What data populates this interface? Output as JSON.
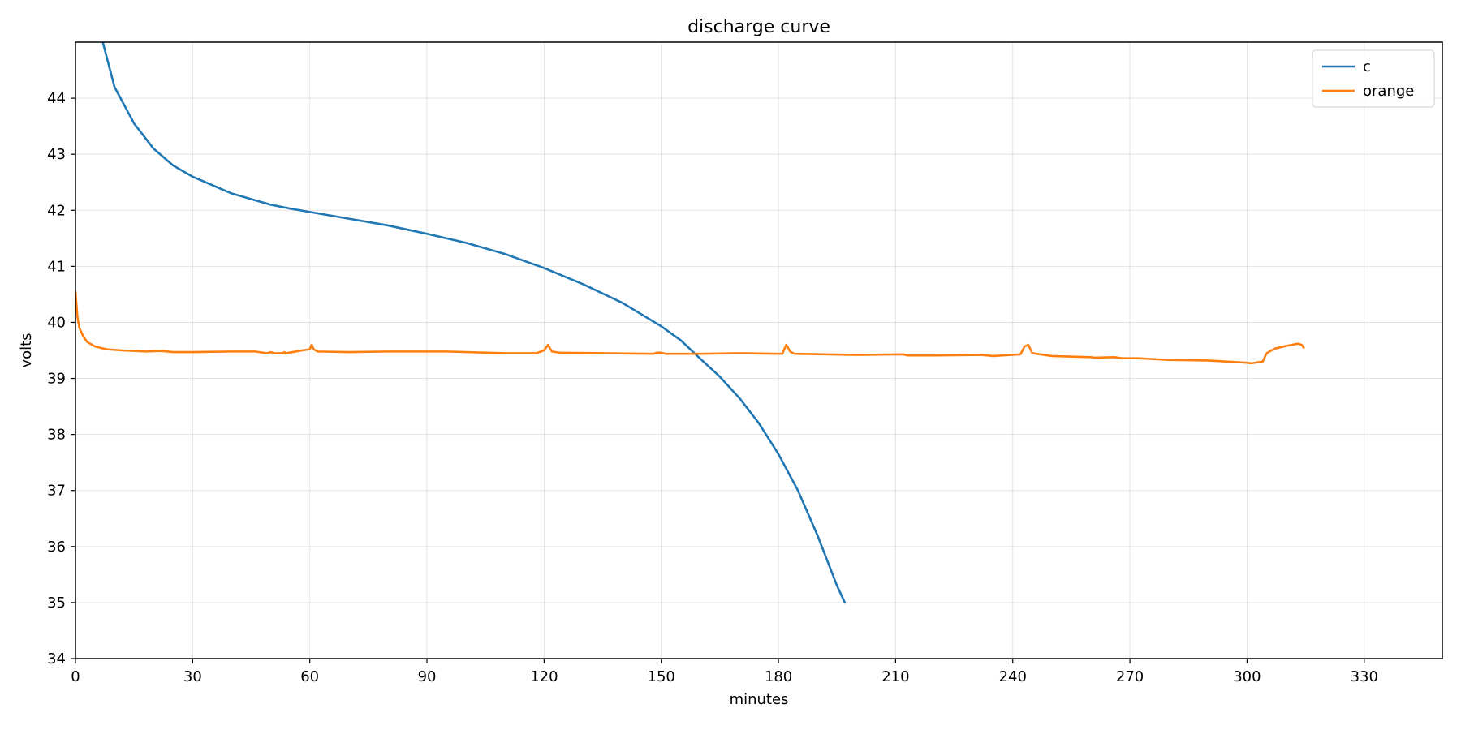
{
  "chart_data": {
    "type": "line",
    "title": "discharge curve",
    "xlabel": "minutes",
    "ylabel": "volts",
    "xlim": [
      0,
      350
    ],
    "ylim": [
      34,
      45
    ],
    "xticks": [
      0,
      30,
      60,
      90,
      120,
      150,
      180,
      210,
      240,
      270,
      300,
      330
    ],
    "yticks": [
      34,
      35,
      36,
      37,
      38,
      39,
      40,
      41,
      42,
      43,
      44
    ],
    "grid": true,
    "legend_position": "top-right",
    "series": [
      {
        "name": "c",
        "color": "#1f77b4",
        "points": [
          [
            7,
            45.0
          ],
          [
            10,
            44.2
          ],
          [
            15,
            43.55
          ],
          [
            20,
            43.1
          ],
          [
            25,
            42.8
          ],
          [
            30,
            42.6
          ],
          [
            35,
            42.45
          ],
          [
            40,
            42.3
          ],
          [
            45,
            42.2
          ],
          [
            50,
            42.1
          ],
          [
            55,
            42.03
          ],
          [
            60,
            41.97
          ],
          [
            70,
            41.85
          ],
          [
            80,
            41.73
          ],
          [
            90,
            41.58
          ],
          [
            100,
            41.42
          ],
          [
            110,
            41.22
          ],
          [
            120,
            40.97
          ],
          [
            130,
            40.68
          ],
          [
            140,
            40.35
          ],
          [
            150,
            39.93
          ],
          [
            155,
            39.68
          ],
          [
            160,
            39.35
          ],
          [
            165,
            39.03
          ],
          [
            170,
            38.65
          ],
          [
            175,
            38.2
          ],
          [
            180,
            37.65
          ],
          [
            185,
            37.0
          ],
          [
            190,
            36.2
          ],
          [
            195,
            35.3
          ],
          [
            197,
            35.0
          ]
        ]
      },
      {
        "name": "orange",
        "color": "#ff7f0e",
        "points": [
          [
            0,
            40.55
          ],
          [
            0.5,
            40.1
          ],
          [
            1,
            39.9
          ],
          [
            2,
            39.75
          ],
          [
            3,
            39.65
          ],
          [
            5,
            39.57
          ],
          [
            8,
            39.52
          ],
          [
            12,
            39.5
          ],
          [
            18,
            39.48
          ],
          [
            22,
            39.49
          ],
          [
            25,
            39.47
          ],
          [
            30,
            39.47
          ],
          [
            40,
            39.48
          ],
          [
            46,
            39.48
          ],
          [
            49,
            39.45
          ],
          [
            50,
            39.47
          ],
          [
            51,
            39.45
          ],
          [
            53,
            39.45
          ],
          [
            53.5,
            39.47
          ],
          [
            54,
            39.45
          ],
          [
            58,
            39.5
          ],
          [
            60,
            39.52
          ],
          [
            60.5,
            39.6
          ],
          [
            61,
            39.52
          ],
          [
            62,
            39.48
          ],
          [
            70,
            39.47
          ],
          [
            80,
            39.48
          ],
          [
            95,
            39.48
          ],
          [
            110,
            39.45
          ],
          [
            118,
            39.45
          ],
          [
            120,
            39.5
          ],
          [
            121,
            39.6
          ],
          [
            122,
            39.48
          ],
          [
            124,
            39.46
          ],
          [
            135,
            39.45
          ],
          [
            148,
            39.44
          ],
          [
            149,
            39.46
          ],
          [
            150,
            39.46
          ],
          [
            151,
            39.44
          ],
          [
            160,
            39.44
          ],
          [
            170,
            39.45
          ],
          [
            180,
            39.44
          ],
          [
            181,
            39.44
          ],
          [
            182,
            39.6
          ],
          [
            183,
            39.48
          ],
          [
            184,
            39.44
          ],
          [
            200,
            39.42
          ],
          [
            212,
            39.43
          ],
          [
            213,
            39.41
          ],
          [
            220,
            39.41
          ],
          [
            232,
            39.42
          ],
          [
            235,
            39.4
          ],
          [
            242,
            39.43
          ],
          [
            243,
            39.57
          ],
          [
            244,
            39.6
          ],
          [
            245,
            39.45
          ],
          [
            250,
            39.4
          ],
          [
            260,
            39.38
          ],
          [
            261,
            39.37
          ],
          [
            266,
            39.38
          ],
          [
            268,
            39.36
          ],
          [
            272,
            39.36
          ],
          [
            280,
            39.33
          ],
          [
            290,
            39.32
          ],
          [
            300,
            39.28
          ],
          [
            301,
            39.27
          ],
          [
            304,
            39.3
          ],
          [
            305,
            39.45
          ],
          [
            307,
            39.53
          ],
          [
            310,
            39.58
          ],
          [
            313,
            39.62
          ],
          [
            314,
            39.6
          ],
          [
            314.5,
            39.55
          ]
        ]
      }
    ]
  }
}
